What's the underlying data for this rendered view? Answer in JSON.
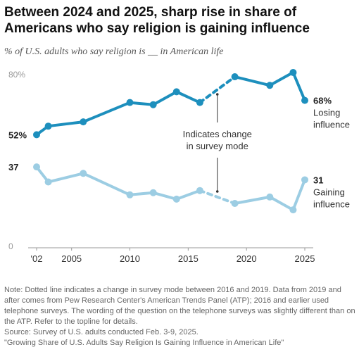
{
  "title": "Between 2024 and 2025, sharp rise in share of Americans who say religion is gaining influence",
  "subtitle": "% of U.S. adults who say religion is __ in American life",
  "chart_data": {
    "type": "line",
    "x": [
      2002,
      2003,
      2006,
      2010,
      2012,
      2014,
      2016,
      2019,
      2022,
      2024,
      2025
    ],
    "xticks": [
      "'02",
      "2005",
      "2010",
      "2015",
      "2020",
      "2025"
    ],
    "xtick_values": [
      2002,
      2005,
      2010,
      2015,
      2020,
      2025
    ],
    "ylim": [
      0,
      80
    ],
    "yticks": [
      {
        "value": 80,
        "label": "80%"
      },
      {
        "value": 0,
        "label": "0"
      }
    ],
    "dashed_between": [
      2016,
      2019
    ],
    "series": [
      {
        "name": "Losing influence",
        "name_lines": [
          "Losing",
          "influence"
        ],
        "color": "#1d8fbd",
        "values": [
          52,
          56,
          58,
          67,
          66,
          72,
          67,
          79,
          75,
          81,
          68
        ],
        "start_label": "52%",
        "end_label": "68%"
      },
      {
        "name": "Gaining influence",
        "name_lines": [
          "Gaining",
          "influence"
        ],
        "color": "#9ccde3",
        "values": [
          37,
          30,
          34,
          24,
          25,
          22,
          26,
          20,
          23,
          17,
          31
        ],
        "start_label": "37",
        "end_label": "31"
      }
    ],
    "annotation": {
      "lines": [
        "Indicates change",
        "in survey mode"
      ],
      "x": 2017.5
    }
  },
  "notes": [
    "Note: Dotted line indicates a change in survey mode between 2016 and 2019. Data from 2019 and after comes from Pew Research Center's American Trends Panel (ATP); 2016 and earlier used telephone surveys. The wording of the question on the telephone surveys was slightly different than on the ATP. Refer to the topline for details.",
    "Source: Survey of U.S. adults conducted Feb. 3-9, 2025.",
    "\"Growing Share of U.S. Adults Say Religion Is Gaining Influence in American Life\""
  ]
}
